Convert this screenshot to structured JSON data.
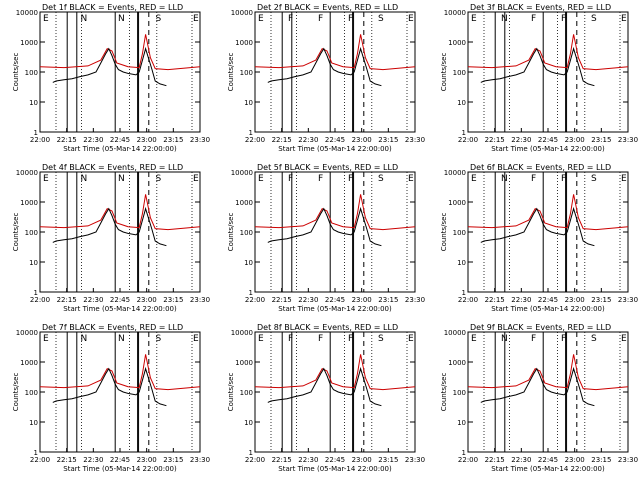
{
  "chart_data": {
    "type": "line",
    "panels": [
      {
        "title": "Det 1f BLACK = Events, RED = LLD",
        "markers": [
          "E",
          "N",
          "N",
          "S",
          "E"
        ]
      },
      {
        "title": "Det 2f BLACK = Events, RED = LLD",
        "markers": [
          "E",
          "F",
          "F",
          "F",
          "S",
          "E"
        ]
      },
      {
        "title": "Det 3f BLACK = Events, RED = LLD",
        "markers": [
          "E",
          "N",
          "F",
          "F",
          "S",
          "E"
        ]
      },
      {
        "title": "Det 4f BLACK = Events, RED = LLD",
        "markers": [
          "E",
          "N",
          "N",
          "S",
          "E"
        ]
      },
      {
        "title": "Det 5f BLACK = Events, RED = LLD",
        "markers": [
          "E",
          "F",
          "F",
          "F",
          "S",
          "E"
        ]
      },
      {
        "title": "Det 6f BLACK = Events, RED = LLD",
        "markers": [
          "E",
          "N",
          "F",
          "F",
          "S",
          "E"
        ]
      },
      {
        "title": "Det 7f BLACK = Events, RED = LLD",
        "markers": [
          "E",
          "N",
          "N",
          "S",
          "E"
        ]
      },
      {
        "title": "Det 8f BLACK = Events, RED = LLD",
        "markers": [
          "E",
          "F",
          "F",
          "F",
          "S",
          "E"
        ]
      },
      {
        "title": "Det 9f BLACK = Events, RED = LLD",
        "markers": [
          "E",
          "N",
          "F",
          "F",
          "S",
          "E"
        ]
      }
    ],
    "xlabel": "Start Time (05-Mar-14 22:00:00)",
    "ylabel": "Counts/sec",
    "x_ticks": [
      "22:00",
      "22:15",
      "22:30",
      "22:45",
      "23:00",
      "23:15",
      "23:30"
    ],
    "y_ticks": [
      "1",
      "10",
      "100",
      "1000",
      "10000"
    ],
    "yscale": "log",
    "ylim": [
      1,
      10000
    ],
    "xlim_minutes": [
      0,
      100
    ],
    "events_series": {
      "color": "#000000",
      "x": [
        8,
        10,
        15,
        20,
        25,
        30,
        35,
        38,
        41,
        43,
        45,
        47,
        49,
        52,
        55,
        60,
        62,
        66,
        70,
        72,
        75,
        79
      ],
      "y": [
        45,
        50,
        55,
        60,
        70,
        80,
        100,
        200,
        400,
        600,
        350,
        180,
        120,
        100,
        90,
        80,
        100,
        600,
        120,
        50,
        40,
        35
      ]
    },
    "lld_series": {
      "color": "#cc0000",
      "x": [
        0,
        15,
        30,
        38,
        42,
        45,
        48,
        55,
        62,
        64,
        66,
        69,
        72,
        80,
        100
      ],
      "y": [
        150,
        140,
        160,
        250,
        600,
        500,
        200,
        150,
        140,
        400,
        1800,
        300,
        130,
        120,
        150
      ]
    },
    "solid_lines_minutes": [
      17,
      23,
      47,
      61,
      61.6
    ],
    "dotted_lines_minutes": [
      10,
      26,
      56,
      73,
      95
    ],
    "dashed_line_minutes": 68
  }
}
